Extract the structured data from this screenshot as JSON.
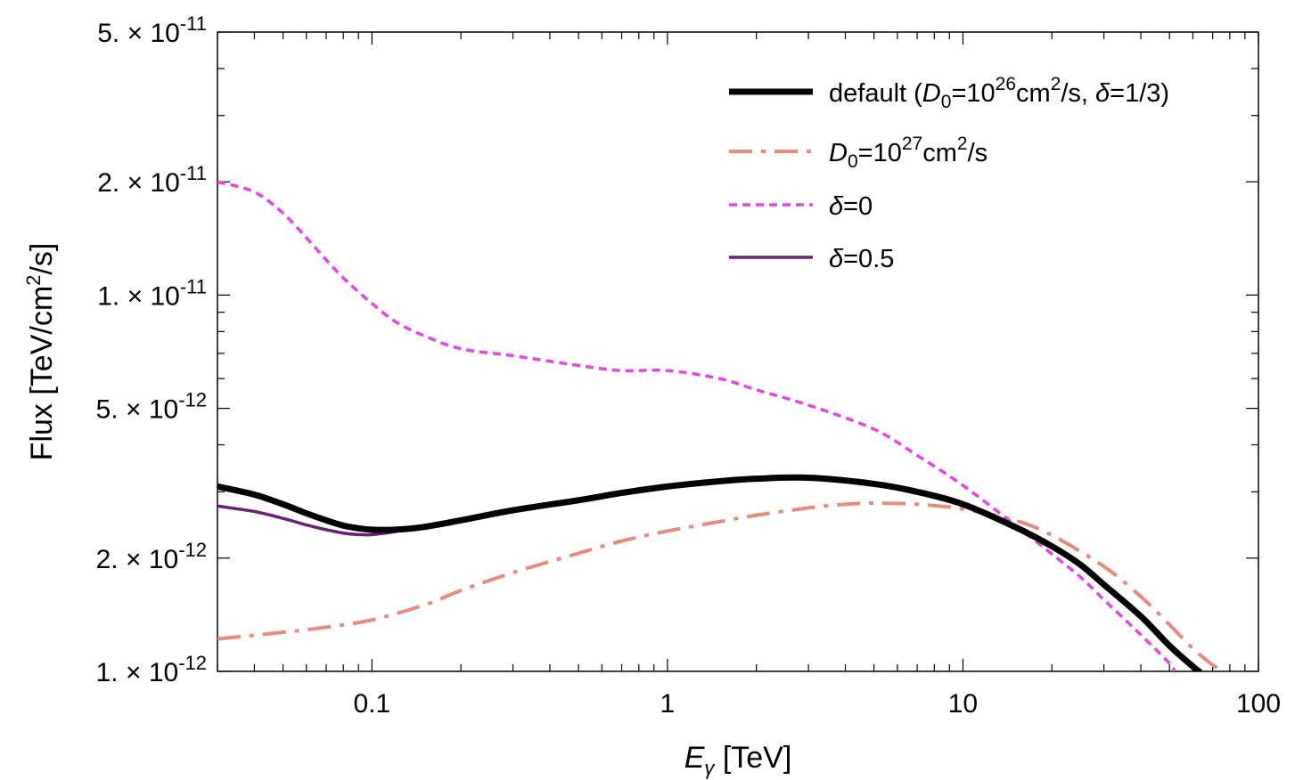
{
  "chart_data": {
    "type": "line",
    "title": "",
    "x_scale": "log",
    "y_scale": "log",
    "xlim": [
      0.03,
      100
    ],
    "ylim": [
      1e-12,
      5e-11
    ],
    "xlabel": {
      "symbol": "E",
      "subscript": "γ",
      "unit": "[TeV]"
    },
    "ylabel": {
      "prefix": "Flux [TeV/cm",
      "sup": "2",
      "suffix": "/s]"
    },
    "x_ticks": [
      {
        "value": 0.1,
        "label": "0.1"
      },
      {
        "value": 1,
        "label": "1"
      },
      {
        "value": 10,
        "label": "10"
      },
      {
        "value": 100,
        "label": "100"
      }
    ],
    "y_ticks": [
      {
        "value": 1e-12,
        "mantissa": "1.",
        "exponent": "-12"
      },
      {
        "value": 2e-12,
        "mantissa": "2.",
        "exponent": "-12"
      },
      {
        "value": 5e-12,
        "mantissa": "5.",
        "exponent": "-12"
      },
      {
        "value": 1e-11,
        "mantissa": "1.",
        "exponent": "-11"
      },
      {
        "value": 2e-11,
        "mantissa": "2.",
        "exponent": "-11"
      },
      {
        "value": 5e-11,
        "mantissa": "5.",
        "exponent": "-11"
      }
    ],
    "tick_times_sign": "×",
    "tick_base": "10",
    "legend_position": "top-right",
    "series": [
      {
        "key": "default",
        "legend": {
          "plain1": "default (",
          "D": "D",
          "Dsub": "0",
          "plain2": "=10",
          "exp1": "26",
          "plain3": "cm",
          "exp2": "2",
          "plain4": "/s, ",
          "delta": "δ",
          "plain5": "=1/3)"
        },
        "color": "#000000",
        "width": 7,
        "dash": "",
        "x": [
          0.03,
          0.04,
          0.05,
          0.06,
          0.07,
          0.08,
          0.09,
          0.1,
          0.12,
          0.15,
          0.2,
          0.3,
          0.5,
          0.7,
          1,
          1.5,
          2,
          3,
          5,
          7,
          10,
          15,
          20,
          25,
          30,
          40,
          50,
          60,
          63
        ],
        "y": [
          3.1e-12,
          2.95e-12,
          2.78e-12,
          2.63e-12,
          2.52e-12,
          2.44e-12,
          2.4e-12,
          2.38e-12,
          2.38e-12,
          2.42e-12,
          2.52e-12,
          2.68e-12,
          2.85e-12,
          2.98e-12,
          3.1e-12,
          3.2e-12,
          3.25e-12,
          3.27e-12,
          3.15e-12,
          3e-12,
          2.78e-12,
          2.42e-12,
          2.15e-12,
          1.92e-12,
          1.7e-12,
          1.4e-12,
          1.17e-12,
          1.03e-12,
          1e-12
        ]
      },
      {
        "key": "D27",
        "legend": {
          "D": "D",
          "Dsub": "0",
          "plain2": "=10",
          "exp1": "27",
          "plain3": "cm",
          "exp2": "2",
          "plain4": "/s"
        },
        "color": "#e98a7e",
        "width": 4,
        "dash": "26 10 5 10",
        "x": [
          0.03,
          0.05,
          0.07,
          0.1,
          0.15,
          0.2,
          0.3,
          0.5,
          0.7,
          1,
          1.5,
          2,
          3,
          4,
          5,
          7,
          10,
          15,
          20,
          30,
          40,
          50,
          60,
          70,
          76
        ],
        "y": [
          1.22e-12,
          1.27e-12,
          1.31e-12,
          1.37e-12,
          1.5e-12,
          1.64e-12,
          1.83e-12,
          2.06e-12,
          2.22e-12,
          2.36e-12,
          2.5e-12,
          2.6e-12,
          2.72e-12,
          2.78e-12,
          2.8e-12,
          2.78e-12,
          2.7e-12,
          2.52e-12,
          2.3e-12,
          1.9e-12,
          1.58e-12,
          1.33e-12,
          1.15e-12,
          1.04e-12,
          1e-12
        ]
      },
      {
        "key": "delta0",
        "legend": {
          "delta": "δ",
          "plain5": "=0"
        },
        "color": "#e646e6",
        "width": 3.5,
        "dash": "9 6",
        "x": [
          0.03,
          0.04,
          0.05,
          0.06,
          0.07,
          0.08,
          0.09,
          0.1,
          0.12,
          0.15,
          0.2,
          0.3,
          0.5,
          0.7,
          1,
          1.5,
          2,
          3,
          5,
          7,
          10,
          15,
          20,
          25,
          30,
          40,
          50,
          52
        ],
        "y": [
          2e-11,
          1.88e-11,
          1.65e-11,
          1.42e-11,
          1.24e-11,
          1.11e-11,
          1.02e-11,
          9.5e-12,
          8.5e-12,
          7.8e-12,
          7.2e-12,
          6.9e-12,
          6.5e-12,
          6.3e-12,
          6.3e-12,
          6e-12,
          5.6e-12,
          5.1e-12,
          4.4e-12,
          3.75e-12,
          3.12e-12,
          2.45e-12,
          2.05e-12,
          1.78e-12,
          1.55e-12,
          1.25e-12,
          1.05e-12,
          1e-12
        ]
      },
      {
        "key": "delta05",
        "legend": {
          "delta": "δ",
          "plain5": "=0.5"
        },
        "color": "#6b1e78",
        "width": 3.5,
        "dash": "",
        "x": [
          0.03,
          0.04,
          0.05,
          0.06,
          0.07,
          0.08,
          0.09,
          0.1,
          0.12
        ],
        "y": [
          2.75e-12,
          2.66e-12,
          2.55e-12,
          2.45e-12,
          2.38e-12,
          2.33e-12,
          2.31e-12,
          2.31e-12,
          2.35e-12
        ]
      }
    ]
  }
}
